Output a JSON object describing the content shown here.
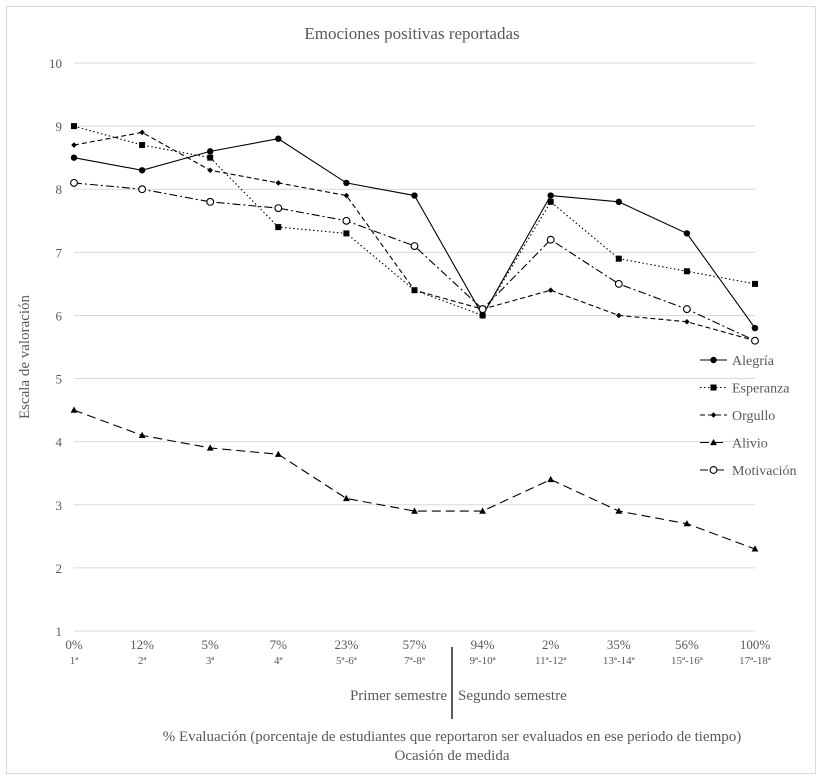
{
  "chart_data": {
    "type": "line",
    "title": "Emociones positivas reportadas",
    "ylabel": "Escala de valoración",
    "xlabel_line1": "% Evaluación (porcentaje de estudiantes que reportaron ser evaluados en ese periodo de tiempo)",
    "xlabel_line2": "Ocasión de medida",
    "ylim": [
      1,
      10
    ],
    "yticks": [
      1,
      2,
      3,
      4,
      5,
      6,
      7,
      8,
      9,
      10
    ],
    "grid": true,
    "legend_position": "right",
    "categories": [
      {
        "pct": "0%",
        "occ": "1ª"
      },
      {
        "pct": "12%",
        "occ": "2ª"
      },
      {
        "pct": "5%",
        "occ": "3ª"
      },
      {
        "pct": "7%",
        "occ": "4ª"
      },
      {
        "pct": "23%",
        "occ": "5ª-6ª"
      },
      {
        "pct": "57%",
        "occ": "7ª-8ª"
      },
      {
        "pct": "94%",
        "occ": "9ª-10ª"
      },
      {
        "pct": "2%",
        "occ": "11ª-12ª"
      },
      {
        "pct": "35%",
        "occ": "13ª-14ª"
      },
      {
        "pct": "56%",
        "occ": "15ª-16ª"
      },
      {
        "pct": "100%",
        "occ": "17ª-18ª"
      }
    ],
    "groups": [
      "Primer semestre",
      "Segundo semestre"
    ],
    "series": [
      {
        "name": "Alegría",
        "values": [
          8.5,
          8.3,
          8.6,
          8.8,
          8.1,
          7.9,
          6.0,
          7.9,
          7.8,
          7.3,
          5.8
        ],
        "dash": "",
        "marker": "circle"
      },
      {
        "name": "Esperanza",
        "values": [
          9.0,
          8.7,
          8.5,
          7.4,
          7.3,
          6.4,
          6.0,
          7.8,
          6.9,
          6.7,
          6.5
        ],
        "dash": "1.5,2.5",
        "marker": "square"
      },
      {
        "name": "Orgullo",
        "values": [
          8.7,
          8.9,
          8.3,
          8.1,
          7.9,
          6.4,
          6.1,
          6.4,
          6.0,
          5.9,
          5.6
        ],
        "dash": "5,3",
        "marker": "diamond"
      },
      {
        "name": "Alivio",
        "values": [
          4.5,
          4.1,
          3.9,
          3.8,
          3.1,
          2.9,
          2.9,
          3.4,
          2.9,
          2.7,
          2.3
        ],
        "dash": "9,5",
        "marker": "triangle"
      },
      {
        "name": "Motivación",
        "values": [
          8.1,
          8.0,
          7.8,
          7.7,
          7.5,
          7.1,
          6.1,
          7.2,
          6.5,
          6.1,
          5.6
        ],
        "dash": "8,3,2,3",
        "marker": "open-circle"
      }
    ],
    "colors": {
      "line": "#000000",
      "grid": "#d9d9d9",
      "text": "#595959"
    }
  }
}
